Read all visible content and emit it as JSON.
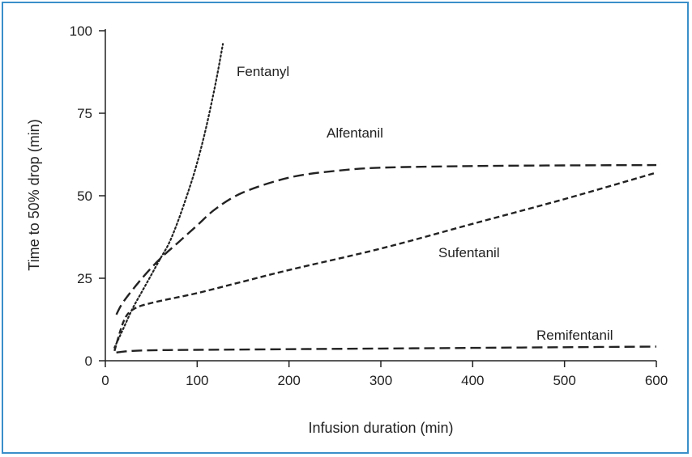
{
  "colors": {
    "frame": "#3a8fc9",
    "line": "#222222"
  },
  "chart_data": {
    "type": "line",
    "title": "",
    "xlabel": "Infusion duration (min)",
    "ylabel": "Time to 50% drop (min)",
    "xlim": [
      0,
      600
    ],
    "ylim": [
      0,
      100
    ],
    "xticks": [
      "0",
      "100",
      "200",
      "300",
      "400",
      "500",
      "600"
    ],
    "yticks": [
      "0",
      "25",
      "50",
      "75",
      "100"
    ],
    "grid": false,
    "legend": "inline labels",
    "series": [
      {
        "name": "Fentanyl",
        "style": "dotted",
        "x": [
          10,
          20,
          30,
          40,
          50,
          60,
          70,
          80,
          90,
          100,
          110,
          120,
          128
        ],
        "y": [
          4,
          10,
          16,
          21,
          26,
          31,
          36,
          43,
          51,
          60,
          71,
          84,
          96
        ]
      },
      {
        "name": "Alfentanil",
        "style": "long-dash",
        "x": [
          12,
          20,
          40,
          60,
          80,
          100,
          120,
          150,
          200,
          250,
          300,
          400,
          500,
          600
        ],
        "y": [
          14,
          18,
          25,
          31,
          36,
          41,
          46,
          51,
          55.5,
          57.5,
          58.5,
          59,
          59.2,
          59.3
        ]
      },
      {
        "name": "Sufentanil",
        "style": "dashed",
        "x": [
          10,
          20,
          30,
          50,
          100,
          150,
          200,
          300,
          400,
          500,
          600
        ],
        "y": [
          3,
          12,
          15.5,
          17.5,
          20.5,
          24,
          27.5,
          34,
          41.5,
          49,
          57
        ]
      },
      {
        "name": "Remifentanil",
        "style": "long-dash",
        "x": [
          12,
          30,
          60,
          100,
          200,
          300,
          400,
          500,
          600
        ],
        "y": [
          2.5,
          3,
          3.2,
          3.3,
          3.5,
          3.7,
          3.9,
          4.1,
          4.3
        ]
      }
    ]
  }
}
